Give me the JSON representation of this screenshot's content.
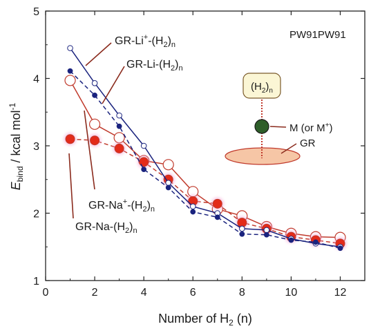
{
  "chart_data": {
    "type": "line",
    "xlabel": {
      "prefix": "Number of H",
      "sub": "2",
      "suffix": " (n)"
    },
    "ylabel": {
      "main": "E",
      "sub": "bind",
      "suffix": " / kcal mol",
      "sup": "-1"
    },
    "xlim": [
      0,
      13
    ],
    "ylim": [
      1,
      5
    ],
    "xticks": [
      "0",
      "2",
      "4",
      "6",
      "8",
      "10",
      "12"
    ],
    "yticks": [
      "1",
      "2",
      "3",
      "4",
      "5"
    ],
    "method_label": "PW91PW91",
    "x": [
      1,
      2,
      3,
      4,
      5,
      6,
      7,
      8,
      9,
      10,
      11,
      12
    ],
    "series": [
      {
        "name": "GR-Li⁺-(H₂)ₙ",
        "color": "#1a237e",
        "line": "solid",
        "marker": "open-small",
        "values": [
          4.45,
          3.93,
          3.45,
          3.0,
          2.45,
          2.1,
          2.0,
          1.77,
          1.75,
          1.62,
          1.55,
          1.5
        ],
        "label": {
          "base": "GR-Li",
          "sup": "+",
          "mid": "-(H",
          "sub1": "2",
          "close": ")",
          "sub2": "n"
        }
      },
      {
        "name": "GR-Li-(H₂)ₙ",
        "color": "#1a237e",
        "line": "dashed",
        "marker": "filled-small",
        "values": [
          4.11,
          3.75,
          3.29,
          2.65,
          2.38,
          2.02,
          1.94,
          1.69,
          1.68,
          1.6,
          1.57,
          1.48
        ],
        "label": {
          "base": "GR-Li",
          "sup": "",
          "mid": "-(H",
          "sub1": "2",
          "close": ")",
          "sub2": "n"
        }
      },
      {
        "name": "GR-Na⁺-(H₂)ₙ",
        "color": "#c0392b",
        "line": "solid",
        "marker": "open-large",
        "values": [
          3.97,
          3.32,
          3.12,
          2.78,
          2.72,
          2.32,
          2.06,
          1.96,
          1.8,
          1.7,
          1.65,
          1.64
        ],
        "label": {
          "base": "GR-Na",
          "sup": "+",
          "mid": "-(H",
          "sub1": "2",
          "close": ")",
          "sub2": "n"
        }
      },
      {
        "name": "GR-Na-(H₂)ₙ",
        "color": "#c0392b",
        "line": "dashed",
        "marker": "filled-large",
        "values": [
          3.1,
          3.08,
          2.96,
          2.76,
          2.5,
          2.18,
          2.14,
          1.86,
          1.77,
          1.65,
          1.6,
          1.55
        ],
        "label": {
          "base": "GR-Na",
          "sup": "",
          "mid": "-(H",
          "sub1": "2",
          "close": ")",
          "sub2": "n"
        }
      }
    ],
    "schematic": {
      "h2_label": {
        "open": "(H",
        "sub1": "2",
        "close": ")",
        "sub2": "n"
      },
      "metal_label": {
        "base": "M (or M",
        "sup": "+",
        "close": ")"
      },
      "surface_label": "GR"
    }
  }
}
